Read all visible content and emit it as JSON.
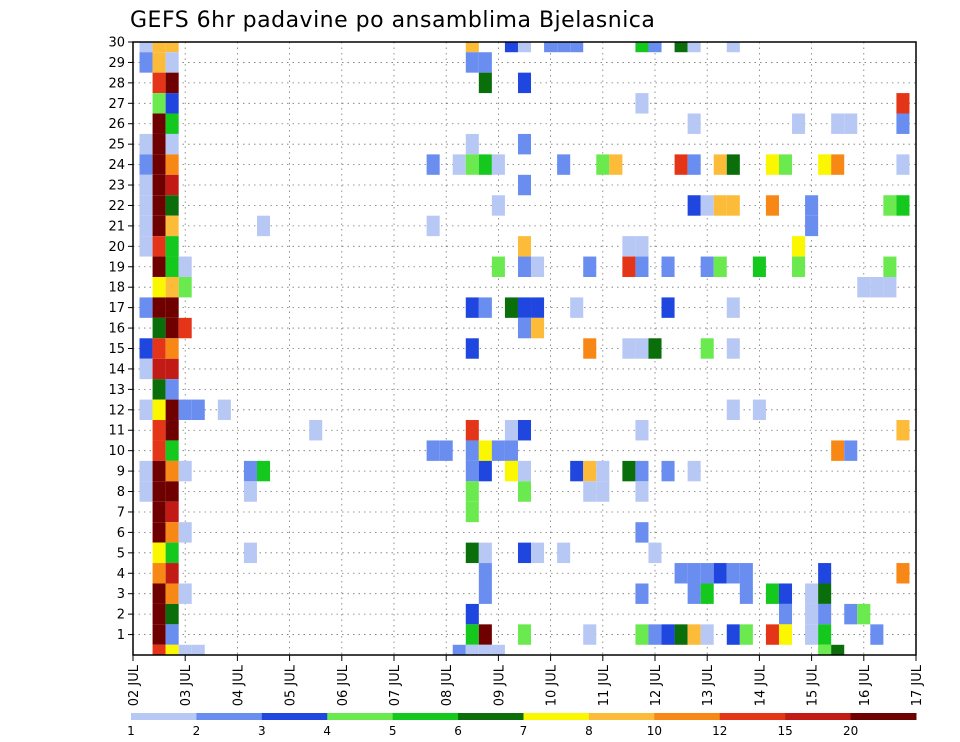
{
  "chart_data": {
    "type": "heatmap",
    "title": "GEFS 6hr padavine po ansamblima Bjelasnica",
    "x_labels": [
      "02 JUL",
      "03 JUL",
      "04 JUL",
      "05 JUL",
      "06 JUL",
      "07 JUL",
      "08 JUL",
      "09 JUL",
      "10 JUL",
      "11 JUL",
      "12 JUL",
      "13 JUL",
      "14 JUL",
      "15 JUL",
      "16 JUL",
      "17 JUL"
    ],
    "y_labels": [
      "1",
      "2",
      "3",
      "4",
      "5",
      "6",
      "7",
      "8",
      "9",
      "10",
      "11",
      "12",
      "13",
      "14",
      "15",
      "16",
      "17",
      "18",
      "19",
      "20",
      "21",
      "22",
      "23",
      "24",
      "25",
      "26",
      "27",
      "28",
      "29",
      "30"
    ],
    "x_range_days": [
      0,
      15
    ],
    "y_range": [
      0,
      30
    ],
    "grid": "dotted",
    "legend": {
      "position": "bottom",
      "boundaries": [
        "1",
        "2",
        "3",
        "4",
        "5",
        "6",
        "7",
        "8",
        "10",
        "12",
        "15",
        "20"
      ],
      "colors": [
        "#b8c8f5",
        "#6a8df0",
        "#1f46de",
        "#6bea50",
        "#14c81e",
        "#0a6e0a",
        "#fbf700",
        "#fcbc3a",
        "#f78816",
        "#e53518",
        "#c21b16",
        "#6f0000"
      ]
    },
    "cells": [
      [
        0.25,
        30,
        0
      ],
      [
        0.5,
        30,
        7
      ],
      [
        0.75,
        30,
        7
      ],
      [
        6.5,
        30,
        7
      ],
      [
        7.25,
        30,
        2
      ],
      [
        7.5,
        30,
        0
      ],
      [
        8.0,
        30,
        1
      ],
      [
        8.25,
        30,
        1
      ],
      [
        8.5,
        30,
        1
      ],
      [
        9.75,
        30,
        4
      ],
      [
        10.0,
        30,
        1
      ],
      [
        10.5,
        30,
        5
      ],
      [
        10.75,
        30,
        0
      ],
      [
        11.5,
        30,
        0
      ],
      [
        0.25,
        29,
        1
      ],
      [
        0.5,
        29,
        7
      ],
      [
        0.75,
        29,
        0
      ],
      [
        6.5,
        29,
        1
      ],
      [
        6.75,
        29,
        1
      ],
      [
        0.5,
        28,
        9
      ],
      [
        0.75,
        28,
        11
      ],
      [
        6.75,
        28,
        5
      ],
      [
        7.5,
        28,
        2
      ],
      [
        0.5,
        27,
        3
      ],
      [
        0.75,
        27,
        2
      ],
      [
        9.75,
        27,
        0
      ],
      [
        14.75,
        27,
        9
      ],
      [
        0.5,
        26,
        11
      ],
      [
        0.75,
        26,
        4
      ],
      [
        10.75,
        26,
        0
      ],
      [
        12.75,
        26,
        0
      ],
      [
        13.5,
        26,
        0
      ],
      [
        13.75,
        26,
        0
      ],
      [
        14.75,
        26,
        1
      ],
      [
        0.25,
        25,
        0
      ],
      [
        0.5,
        25,
        11
      ],
      [
        0.75,
        25,
        0
      ],
      [
        6.5,
        25,
        0
      ],
      [
        7.5,
        25,
        1
      ],
      [
        0.25,
        24,
        1
      ],
      [
        0.5,
        24,
        11
      ],
      [
        0.75,
        24,
        8
      ],
      [
        5.75,
        24,
        1
      ],
      [
        6.25,
        24,
        0
      ],
      [
        6.5,
        24,
        3
      ],
      [
        6.75,
        24,
        4
      ],
      [
        7.0,
        24,
        0
      ],
      [
        8.25,
        24,
        1
      ],
      [
        9.0,
        24,
        3
      ],
      [
        9.25,
        24,
        7
      ],
      [
        10.5,
        24,
        9
      ],
      [
        10.75,
        24,
        1
      ],
      [
        11.25,
        24,
        7
      ],
      [
        11.5,
        24,
        5
      ],
      [
        12.25,
        24,
        6
      ],
      [
        12.5,
        24,
        3
      ],
      [
        13.25,
        24,
        6
      ],
      [
        13.5,
        24,
        8
      ],
      [
        14.75,
        24,
        0
      ],
      [
        0.25,
        23,
        0
      ],
      [
        0.5,
        23,
        11
      ],
      [
        0.75,
        23,
        10
      ],
      [
        7.5,
        23,
        1
      ],
      [
        0.25,
        22,
        0
      ],
      [
        0.5,
        22,
        11
      ],
      [
        0.75,
        22,
        5
      ],
      [
        7.0,
        22,
        0
      ],
      [
        10.75,
        22,
        2
      ],
      [
        11.0,
        22,
        0
      ],
      [
        11.25,
        22,
        7
      ],
      [
        11.5,
        22,
        7
      ],
      [
        12.25,
        22,
        8
      ],
      [
        13.0,
        22,
        1
      ],
      [
        14.5,
        22,
        3
      ],
      [
        14.75,
        22,
        4
      ],
      [
        0.25,
        21,
        0
      ],
      [
        0.5,
        21,
        11
      ],
      [
        0.75,
        21,
        7
      ],
      [
        2.5,
        21,
        0
      ],
      [
        5.75,
        21,
        0
      ],
      [
        13.0,
        21,
        1
      ],
      [
        0.25,
        20,
        0
      ],
      [
        0.5,
        20,
        9
      ],
      [
        0.75,
        20,
        4
      ],
      [
        7.5,
        20,
        7
      ],
      [
        9.5,
        20,
        0
      ],
      [
        9.75,
        20,
        0
      ],
      [
        12.75,
        20,
        6
      ],
      [
        0.5,
        19,
        11
      ],
      [
        0.75,
        19,
        4
      ],
      [
        1.0,
        19,
        0
      ],
      [
        7.0,
        19,
        3
      ],
      [
        7.5,
        19,
        1
      ],
      [
        7.75,
        19,
        0
      ],
      [
        8.75,
        19,
        1
      ],
      [
        9.5,
        19,
        9
      ],
      [
        9.75,
        19,
        1
      ],
      [
        10.25,
        19,
        1
      ],
      [
        11.0,
        19,
        1
      ],
      [
        11.25,
        19,
        3
      ],
      [
        12.0,
        19,
        4
      ],
      [
        12.75,
        19,
        3
      ],
      [
        14.5,
        19,
        3
      ],
      [
        0.5,
        18,
        6
      ],
      [
        0.75,
        18,
        7
      ],
      [
        1.0,
        18,
        3
      ],
      [
        14.0,
        18,
        0
      ],
      [
        14.25,
        18,
        0
      ],
      [
        14.5,
        18,
        0
      ],
      [
        0.25,
        17,
        1
      ],
      [
        0.5,
        17,
        11
      ],
      [
        0.75,
        17,
        11
      ],
      [
        6.5,
        17,
        2
      ],
      [
        6.75,
        17,
        1
      ],
      [
        7.25,
        17,
        5
      ],
      [
        7.5,
        17,
        2
      ],
      [
        7.75,
        17,
        2
      ],
      [
        8.5,
        17,
        0
      ],
      [
        10.25,
        17,
        2
      ],
      [
        11.5,
        17,
        0
      ],
      [
        0.5,
        16,
        5
      ],
      [
        0.75,
        16,
        11
      ],
      [
        1.0,
        16,
        9
      ],
      [
        7.5,
        16,
        1
      ],
      [
        7.75,
        16,
        7
      ],
      [
        0.25,
        15,
        2
      ],
      [
        0.5,
        15,
        9
      ],
      [
        0.75,
        15,
        8
      ],
      [
        6.5,
        15,
        2
      ],
      [
        8.75,
        15,
        8
      ],
      [
        9.5,
        15,
        0
      ],
      [
        9.75,
        15,
        0
      ],
      [
        10.0,
        15,
        5
      ],
      [
        11.0,
        15,
        3
      ],
      [
        11.5,
        15,
        0
      ],
      [
        0.25,
        14,
        0
      ],
      [
        0.5,
        14,
        10
      ],
      [
        0.75,
        14,
        10
      ],
      [
        0.5,
        13,
        5
      ],
      [
        0.75,
        13,
        1
      ],
      [
        0.25,
        12,
        0
      ],
      [
        0.5,
        12,
        6
      ],
      [
        0.75,
        12,
        11
      ],
      [
        1.0,
        12,
        1
      ],
      [
        1.25,
        12,
        1
      ],
      [
        1.75,
        12,
        0
      ],
      [
        11.5,
        12,
        0
      ],
      [
        12.0,
        12,
        0
      ],
      [
        0.5,
        11,
        9
      ],
      [
        0.75,
        11,
        11
      ],
      [
        3.5,
        11,
        0
      ],
      [
        6.5,
        11,
        9
      ],
      [
        7.25,
        11,
        0
      ],
      [
        7.5,
        11,
        2
      ],
      [
        9.75,
        11,
        0
      ],
      [
        14.75,
        11,
        7
      ],
      [
        0.5,
        10,
        9
      ],
      [
        0.75,
        10,
        4
      ],
      [
        5.75,
        10,
        1
      ],
      [
        6.0,
        10,
        1
      ],
      [
        6.5,
        10,
        1
      ],
      [
        6.75,
        10,
        6
      ],
      [
        7.0,
        10,
        1
      ],
      [
        7.25,
        10,
        1
      ],
      [
        13.5,
        10,
        8
      ],
      [
        13.75,
        10,
        1
      ],
      [
        0.25,
        9,
        0
      ],
      [
        0.5,
        9,
        11
      ],
      [
        0.75,
        9,
        8
      ],
      [
        1.0,
        9,
        0
      ],
      [
        2.25,
        9,
        1
      ],
      [
        2.5,
        9,
        4
      ],
      [
        6.5,
        9,
        1
      ],
      [
        6.75,
        9,
        2
      ],
      [
        7.25,
        9,
        6
      ],
      [
        7.5,
        9,
        0
      ],
      [
        8.5,
        9,
        2
      ],
      [
        8.75,
        9,
        7
      ],
      [
        9.0,
        9,
        0
      ],
      [
        9.5,
        9,
        5
      ],
      [
        9.75,
        9,
        1
      ],
      [
        10.25,
        9,
        1
      ],
      [
        10.75,
        9,
        0
      ],
      [
        0.25,
        8,
        0
      ],
      [
        0.5,
        8,
        11
      ],
      [
        0.75,
        8,
        11
      ],
      [
        2.25,
        8,
        0
      ],
      [
        6.5,
        8,
        3
      ],
      [
        7.5,
        8,
        3
      ],
      [
        8.75,
        8,
        0
      ],
      [
        9.75,
        8,
        0
      ],
      [
        9.0,
        8,
        0
      ],
      [
        0.5,
        7,
        11
      ],
      [
        0.75,
        7,
        10
      ],
      [
        6.5,
        7,
        3
      ],
      [
        0.5,
        6,
        11
      ],
      [
        0.75,
        6,
        8
      ],
      [
        1.0,
        6,
        0
      ],
      [
        9.75,
        6,
        1
      ],
      [
        0.5,
        5,
        6
      ],
      [
        0.75,
        5,
        4
      ],
      [
        2.25,
        5,
        0
      ],
      [
        6.5,
        5,
        5
      ],
      [
        6.75,
        5,
        0
      ],
      [
        7.5,
        5,
        2
      ],
      [
        7.75,
        5,
        0
      ],
      [
        8.25,
        5,
        0
      ],
      [
        10.0,
        5,
        0
      ],
      [
        0.5,
        4,
        8
      ],
      [
        0.75,
        4,
        10
      ],
      [
        6.75,
        4,
        1
      ],
      [
        10.5,
        4,
        1
      ],
      [
        10.75,
        4,
        1
      ],
      [
        11.0,
        4,
        1
      ],
      [
        11.25,
        4,
        2
      ],
      [
        11.5,
        4,
        1
      ],
      [
        11.75,
        4,
        1
      ],
      [
        13.25,
        4,
        2
      ],
      [
        14.75,
        4,
        8
      ],
      [
        0.5,
        3,
        11
      ],
      [
        0.75,
        3,
        8
      ],
      [
        1.0,
        3,
        0
      ],
      [
        6.75,
        3,
        1
      ],
      [
        9.75,
        3,
        1
      ],
      [
        10.75,
        3,
        1
      ],
      [
        11.0,
        3,
        4
      ],
      [
        11.75,
        3,
        1
      ],
      [
        12.25,
        3,
        4
      ],
      [
        12.5,
        3,
        2
      ],
      [
        13.0,
        3,
        0
      ],
      [
        13.25,
        3,
        5
      ],
      [
        0.5,
        2,
        11
      ],
      [
        0.75,
        2,
        5
      ],
      [
        6.5,
        2,
        2
      ],
      [
        12.5,
        2,
        1
      ],
      [
        13.0,
        2,
        0
      ],
      [
        13.25,
        2,
        1
      ],
      [
        13.75,
        2,
        1
      ],
      [
        14.0,
        2,
        3
      ],
      [
        0.5,
        1,
        11
      ],
      [
        0.75,
        1,
        1
      ],
      [
        6.5,
        1,
        4
      ],
      [
        6.75,
        1,
        11
      ],
      [
        7.5,
        1,
        3
      ],
      [
        8.75,
        1,
        0
      ],
      [
        9.75,
        1,
        3
      ],
      [
        10.0,
        1,
        1
      ],
      [
        10.25,
        1,
        2
      ],
      [
        10.5,
        1,
        5
      ],
      [
        10.75,
        1,
        7
      ],
      [
        11.0,
        1,
        0
      ],
      [
        11.5,
        1,
        2
      ],
      [
        11.75,
        1,
        3
      ],
      [
        12.25,
        1,
        9
      ],
      [
        12.5,
        1,
        6
      ],
      [
        13.0,
        1,
        0
      ],
      [
        13.25,
        1,
        4
      ],
      [
        14.25,
        1,
        1
      ],
      [
        0.5,
        0,
        9
      ],
      [
        0.75,
        0,
        6
      ],
      [
        1.0,
        0,
        0
      ],
      [
        1.25,
        0,
        0
      ],
      [
        6.25,
        0,
        1
      ],
      [
        6.5,
        0,
        0
      ],
      [
        6.75,
        0,
        0
      ],
      [
        7.0,
        0,
        0
      ],
      [
        13.25,
        0,
        3
      ],
      [
        13.5,
        0,
        5
      ]
    ]
  }
}
